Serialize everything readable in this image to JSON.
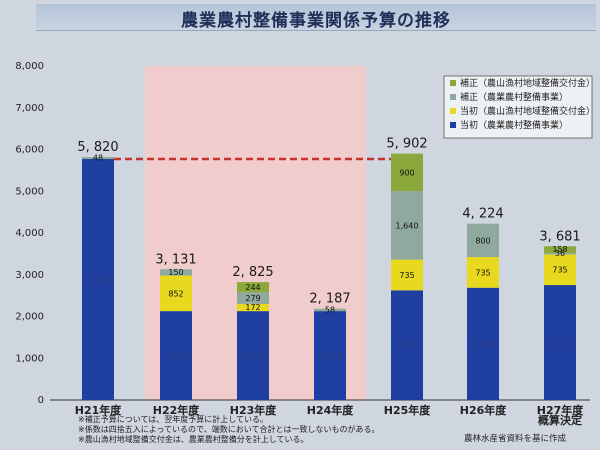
{
  "title": "農業農村整備事業関係予算の推移",
  "colors": {
    "hoseiChiiki": "#8aa83c",
    "hoseiNoson": "#8fa99e",
    "toshoChiiki": "#e8d81e",
    "toshoNoson": "#1f3fa0",
    "highlight": "#f1cccd",
    "refline": "#c6322c"
  },
  "chart_data": {
    "type": "bar",
    "stacked": true,
    "title": "農業農村整備事業関係予算の推移",
    "categories": [
      "H21年度",
      "H22年度",
      "H23年度",
      "H24年度",
      "H25年度",
      "H26年度",
      "H27年度\n概算決定"
    ],
    "category_lines": [
      [
        "H21年度"
      ],
      [
        "H22年度"
      ],
      [
        "H23年度"
      ],
      [
        "H24年度"
      ],
      [
        "H25年度"
      ],
      [
        "H26年度"
      ],
      [
        "H27年度",
        "概算決定"
      ]
    ],
    "totals": [
      "5, 820",
      "3, 131",
      "2, 825",
      "2, 187",
      "5, 902",
      "4, 224",
      "3, 681"
    ],
    "ylim": [
      0,
      8000
    ],
    "yticks": [
      "0",
      "1,000",
      "2,000",
      "3,000",
      "4,000",
      "5,000",
      "6,000",
      "7,000",
      "8,000"
    ],
    "ytick_values": [
      0,
      1000,
      2000,
      3000,
      4000,
      5000,
      6000,
      7000,
      8000
    ],
    "series": [
      {
        "name": "当初（農業農村整備事業）",
        "color": "#1f3fa0",
        "values": [
          5772,
          2129,
          2129,
          2129,
          2627,
          2689,
          2753
        ],
        "labels": [
          "5,772",
          "2,129",
          "2,129",
          "2,129",
          "2,627",
          "2,689",
          "2,753"
        ]
      },
      {
        "name": "当初（農山漁村地域整備交付金）",
        "color": "#e8d81e",
        "values": [
          null,
          852,
          172,
          null,
          735,
          735,
          735
        ],
        "labels": [
          "",
          "852",
          "172",
          "",
          "735",
          "735",
          "735"
        ]
      },
      {
        "name": "補正（農業農村整備事業）",
        "color": "#8fa99e",
        "values": [
          48,
          150,
          279,
          58,
          1640,
          800,
          36
        ],
        "labels": [
          "48",
          "150",
          "279",
          "58",
          "1,640",
          "800",
          "36"
        ]
      },
      {
        "name": "補正（農山漁村地域整備交付金）",
        "color": "#8aa83c",
        "values": [
          null,
          null,
          244,
          null,
          900,
          null,
          158
        ],
        "labels": [
          "",
          "",
          "244",
          "",
          "900",
          "",
          "158"
        ]
      }
    ],
    "legend": [
      {
        "name": "補正（農山漁村地域整備交付金）",
        "color": "#8aa83c"
      },
      {
        "name": "補正（農業農村整備事業）",
        "color": "#8fa99e"
      },
      {
        "name": "当初（農山漁村地域整備交付金）",
        "color": "#e8d81e"
      },
      {
        "name": "当初（農業農村整備事業）",
        "color": "#1f3fa0"
      }
    ],
    "legend_position": "top-right",
    "highlight_range": [
      "H22年度",
      "H24年度"
    ],
    "reference_line": {
      "from": "H21年度",
      "to": "H25年度",
      "value": 5772
    },
    "grid": false
  },
  "notes": [
    "※補正予算については、翌年度予算に計上している。",
    "※係数は四捨五入によっているので、端数において合計とは一致しないものがある。",
    "※農山漁村地域整備交付金は、農業農村整備分を計上している。"
  ],
  "source": "農林水産省資料を基に作成"
}
